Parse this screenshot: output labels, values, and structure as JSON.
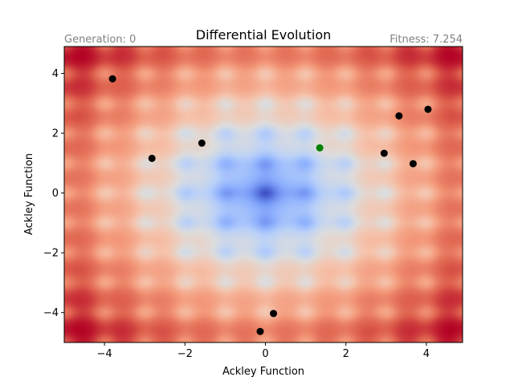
{
  "chart_data": {
    "type": "scatter",
    "title": "Differential Evolution",
    "generation_text": "Generation: 0",
    "fitness_text": "Fitness: 7.254",
    "xlabel": "Ackley Function",
    "ylabel": "Ackley Function",
    "xlim": [
      -5,
      4.9
    ],
    "ylim": [
      -5,
      4.9
    ],
    "xticks": [
      -4,
      -2,
      0,
      2,
      4
    ],
    "yticks": [
      -4,
      -2,
      0,
      2,
      4
    ],
    "xtick_labels": [
      "−4",
      "−2",
      "0",
      "2",
      "4"
    ],
    "ytick_labels": [
      "−4",
      "−2",
      "0",
      "2",
      "4"
    ],
    "background": "heatmap",
    "heatmap_function": "Ackley",
    "colormap": "coolwarm",
    "grid": false,
    "series": [
      {
        "color": "#000000",
        "points": [
          [
            -3.8,
            3.82
          ],
          [
            -2.82,
            1.16
          ],
          [
            -1.58,
            1.67
          ],
          [
            2.95,
            1.33
          ],
          [
            3.32,
            2.58
          ],
          [
            3.67,
            0.98
          ],
          [
            4.04,
            2.8
          ],
          [
            0.2,
            -4.03
          ],
          [
            -0.13,
            -4.63
          ]
        ]
      },
      {
        "color": "#008000",
        "points": [
          [
            1.35,
            1.51
          ]
        ]
      }
    ]
  }
}
